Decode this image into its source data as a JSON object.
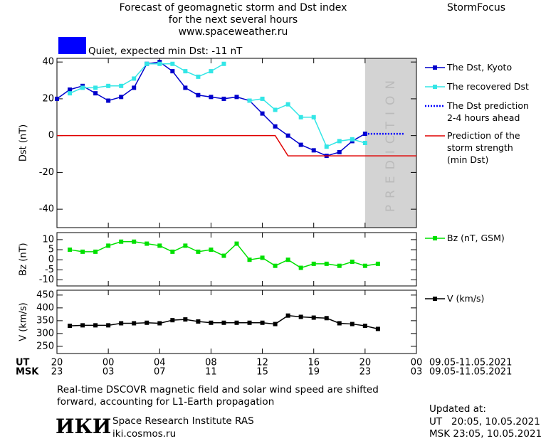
{
  "header": {
    "title_lines": [
      "Forecast of geomagnetic storm and Dst index",
      "for the next several hours",
      "www.spaceweather.ru"
    ],
    "brand": "StormFocus",
    "status": "Quiet, expected min Dst: -11 nT",
    "status_color": "#0000ff"
  },
  "chart_data": [
    {
      "type": "line",
      "ylabel": "Dst (nT)",
      "xlim": [
        0,
        28
      ],
      "ylim": [
        -50,
        42
      ],
      "yticks": [
        -40,
        -20,
        0,
        20,
        40
      ],
      "shade": {
        "x": [
          24,
          28
        ],
        "label": "PREDICTION",
        "color": "#d3d3d3"
      },
      "series": [
        {
          "name": "The Dst, Kyoto",
          "color": "#0000cc",
          "marker": "square",
          "line_style": "solid",
          "x": [
            0,
            1,
            2,
            3,
            4,
            5,
            6,
            7,
            8,
            9,
            10,
            11,
            12,
            13,
            14,
            15,
            16,
            17,
            18,
            19,
            20,
            21,
            22,
            23,
            24
          ],
          "values": [
            20,
            25,
            27,
            23,
            19,
            21,
            26,
            39,
            40,
            35,
            26,
            22,
            21,
            20,
            21,
            19,
            12,
            5,
            0,
            -5,
            -8,
            -11,
            -9,
            -3,
            1
          ]
        },
        {
          "name": "The recovered Dst",
          "color": "#33e6e6",
          "marker": "square",
          "line_style": "solid",
          "x": [
            1,
            2,
            3,
            4,
            5,
            6,
            7,
            8,
            9,
            10,
            11,
            12,
            13,
            14,
            15,
            16,
            17,
            18,
            19,
            20,
            21,
            22,
            23,
            24
          ],
          "values": [
            23,
            26,
            26,
            27,
            27,
            31,
            39,
            39,
            39,
            35,
            32,
            35,
            39,
            null,
            19,
            20,
            14,
            17,
            10,
            10,
            -6,
            -3,
            -2,
            -4
          ]
        },
        {
          "name": "The Dst prediction\n2-4 hours ahead",
          "color": "#0000ff",
          "marker": "none",
          "line_style": "dotted",
          "x": [
            24,
            25,
            26,
            27
          ],
          "values": [
            1,
            1,
            1,
            1
          ]
        },
        {
          "name": "Prediction of the\nstorm strength\n(min Dst)",
          "color": "#e00000",
          "marker": "none",
          "line_style": "solid",
          "x": [
            0,
            17,
            18,
            28
          ],
          "values": [
            0,
            0,
            -11,
            -11
          ]
        }
      ]
    },
    {
      "type": "line",
      "ylabel": "Bz (nT)",
      "xlim": [
        0,
        28
      ],
      "ylim": [
        -13,
        13.5
      ],
      "yticks": [
        -10,
        -5,
        0,
        5,
        10
      ],
      "series": [
        {
          "name": "Bz (nT, GSM)",
          "color": "#00e000",
          "marker": "square",
          "line_style": "solid",
          "x": [
            1,
            2,
            3,
            4,
            5,
            6,
            7,
            8,
            9,
            10,
            11,
            12,
            13,
            14,
            15,
            16,
            17,
            18,
            19,
            20,
            21,
            22,
            23,
            24,
            25
          ],
          "values": [
            5,
            4,
            4,
            7,
            9,
            9,
            8,
            7,
            4,
            7,
            4,
            5,
            2,
            8,
            0,
            1,
            -3,
            0,
            -4,
            -2,
            -2,
            -3,
            -1,
            -3,
            -2
          ]
        }
      ]
    },
    {
      "type": "line",
      "ylabel": "V (km/s)",
      "xlim": [
        0,
        28
      ],
      "ylim": [
        222,
        469
      ],
      "yticks": [
        250,
        300,
        350,
        400,
        450
      ],
      "series": [
        {
          "name": "V (km/s)",
          "color": "#000000",
          "marker": "square",
          "line_style": "solid",
          "x": [
            1,
            2,
            3,
            4,
            5,
            6,
            7,
            8,
            9,
            10,
            11,
            12,
            13,
            14,
            15,
            16,
            17,
            18,
            19,
            20,
            21,
            22,
            23,
            24,
            25
          ],
          "values": [
            330,
            332,
            332,
            332,
            340,
            340,
            342,
            340,
            352,
            355,
            347,
            342,
            342,
            342,
            342,
            342,
            337,
            370,
            365,
            362,
            360,
            340,
            337,
            330,
            318
          ]
        }
      ]
    }
  ],
  "time_axis": {
    "ut_label": "UT",
    "msk_label": "MSK",
    "ut_range": "09.05-11.05.2021",
    "msk_range": "09.05-11.05.2021",
    "ut_ticks": [
      {
        "value": 0,
        "label": "20"
      },
      {
        "value": 4,
        "label": "00"
      },
      {
        "value": 8,
        "label": "04"
      },
      {
        "value": 12,
        "label": "08"
      },
      {
        "value": 16,
        "label": "12"
      },
      {
        "value": 20,
        "label": "16"
      },
      {
        "value": 24,
        "label": "20"
      },
      {
        "value": 28,
        "label": "00"
      }
    ],
    "msk_ticks": [
      {
        "value": 0,
        "label": "23"
      },
      {
        "value": 4,
        "label": "03"
      },
      {
        "value": 8,
        "label": "07"
      },
      {
        "value": 12,
        "label": "11"
      },
      {
        "value": 16,
        "label": "15"
      },
      {
        "value": 20,
        "label": "19"
      },
      {
        "value": 24,
        "label": "23"
      },
      {
        "value": 28,
        "label": "03"
      }
    ]
  },
  "footer": {
    "note_lines": [
      "Real-time DSCOVR magnetic field and solar wind speed are shifted",
      "forward, accounting for L1-Earth propagation"
    ],
    "logo": "ИКИ",
    "institute": "Space Research Institute RAS",
    "url": "iki.cosmos.ru",
    "updated_title": "Updated at:",
    "updated_lines": [
      "UT   20:05, 10.05.2021",
      "MSK 23:05, 10.05.2021"
    ]
  }
}
